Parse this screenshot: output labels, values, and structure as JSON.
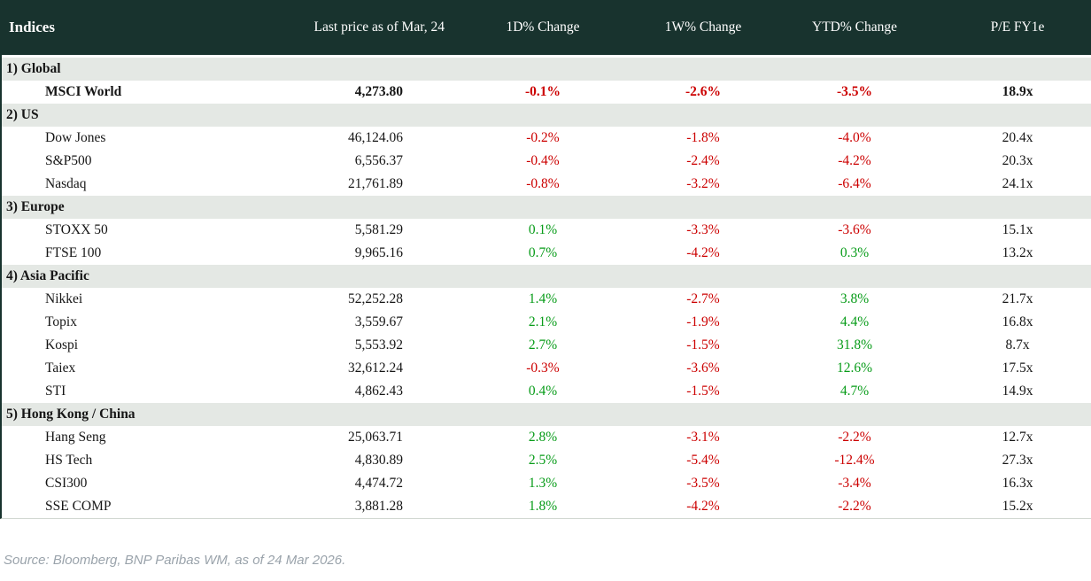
{
  "colors": {
    "header_bg": "#18332e",
    "section_bg": "#e4e8e4",
    "negative": "#cc0000",
    "positive": "#089c19"
  },
  "footer": {
    "source": "Source: Bloomberg, BNP Paribas WM, as of 24 Mar 2026."
  },
  "chart_data": {
    "type": "table",
    "title": "Indices",
    "columns": [
      "Last price as of Mar, 24",
      "1D% Change",
      "1W% Change",
      "YTD% Change",
      "P/E FY1e"
    ],
    "rows": [
      {
        "type": "section",
        "label": "1) Global"
      },
      {
        "type": "index",
        "label": "MSCI World",
        "price": "4,273.80",
        "d1": "-0.1%",
        "w1": "-2.6%",
        "ytd": "-3.5%",
        "pe": "18.9x",
        "bold": true
      },
      {
        "type": "section",
        "label": "2) US"
      },
      {
        "type": "index",
        "label": "Dow Jones",
        "price": "46,124.06",
        "d1": "-0.2%",
        "w1": "-1.8%",
        "ytd": "-4.0%",
        "pe": "20.4x"
      },
      {
        "type": "index",
        "label": "S&P500",
        "price": "6,556.37",
        "d1": "-0.4%",
        "w1": "-2.4%",
        "ytd": "-4.2%",
        "pe": "20.3x"
      },
      {
        "type": "index",
        "label": "Nasdaq",
        "price": "21,761.89",
        "d1": "-0.8%",
        "w1": "-3.2%",
        "ytd": "-6.4%",
        "pe": "24.1x"
      },
      {
        "type": "section",
        "label": "3) Europe"
      },
      {
        "type": "index",
        "label": "STOXX 50",
        "price": "5,581.29",
        "d1": "0.1%",
        "w1": "-3.3%",
        "ytd": "-3.6%",
        "pe": "15.1x"
      },
      {
        "type": "index",
        "label": "FTSE 100",
        "price": "9,965.16",
        "d1": "0.7%",
        "w1": "-4.2%",
        "ytd": "0.3%",
        "pe": "13.2x"
      },
      {
        "type": "section",
        "label": "4) Asia Pacific"
      },
      {
        "type": "index",
        "label": "Nikkei",
        "price": "52,252.28",
        "d1": "1.4%",
        "w1": "-2.7%",
        "ytd": "3.8%",
        "pe": "21.7x"
      },
      {
        "type": "index",
        "label": "Topix",
        "price": "3,559.67",
        "d1": "2.1%",
        "w1": "-1.9%",
        "ytd": "4.4%",
        "pe": "16.8x"
      },
      {
        "type": "index",
        "label": "Kospi",
        "price": "5,553.92",
        "d1": "2.7%",
        "w1": "-1.5%",
        "ytd": "31.8%",
        "pe": "8.7x"
      },
      {
        "type": "index",
        "label": "Taiex",
        "price": "32,612.24",
        "d1": "-0.3%",
        "w1": "-3.6%",
        "ytd": "12.6%",
        "pe": "17.5x"
      },
      {
        "type": "index",
        "label": "STI",
        "price": "4,862.43",
        "d1": "0.4%",
        "w1": "-1.5%",
        "ytd": "4.7%",
        "pe": "14.9x"
      },
      {
        "type": "section",
        "label": "5) Hong Kong / China"
      },
      {
        "type": "index",
        "label": "Hang Seng",
        "price": "25,063.71",
        "d1": "2.8%",
        "w1": "-3.1%",
        "ytd": "-2.2%",
        "pe": "12.7x"
      },
      {
        "type": "index",
        "label": "HS Tech",
        "price": "4,830.89",
        "d1": "2.5%",
        "w1": "-5.4%",
        "ytd": "-12.4%",
        "pe": "27.3x"
      },
      {
        "type": "index",
        "label": "CSI300",
        "price": "4,474.72",
        "d1": "1.3%",
        "w1": "-3.5%",
        "ytd": "-3.4%",
        "pe": "16.3x"
      },
      {
        "type": "index",
        "label": "SSE COMP",
        "price": "3,881.28",
        "d1": "1.8%",
        "w1": "-4.2%",
        "ytd": "-2.2%",
        "pe": "15.2x"
      }
    ]
  }
}
